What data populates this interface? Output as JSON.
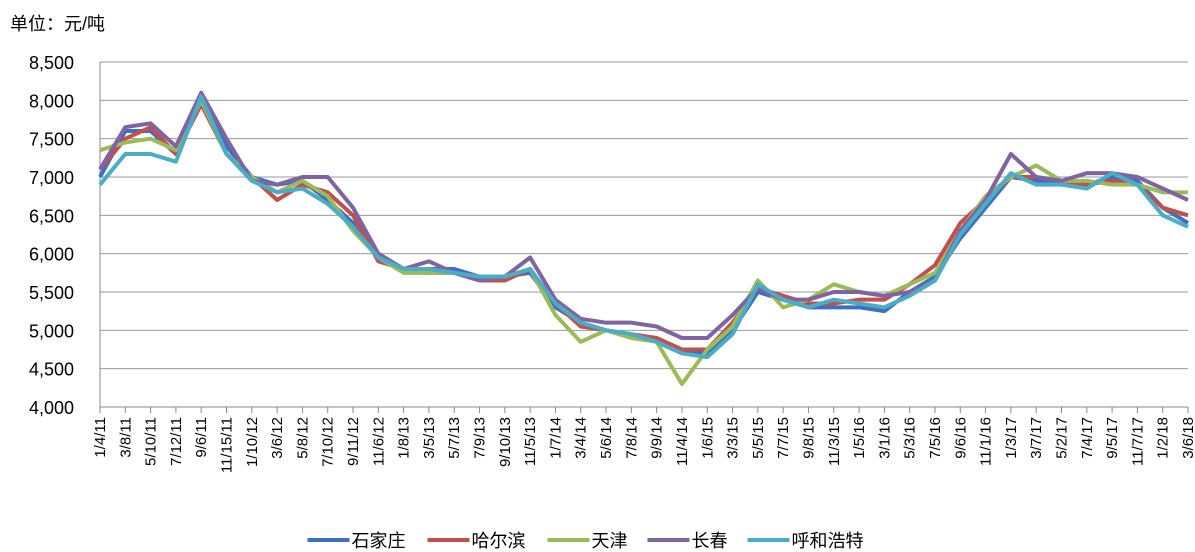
{
  "chart_data": {
    "type": "line",
    "unit_label": "单位：元/吨",
    "categories": [
      "1/4/11",
      "3/8/11",
      "5/10/11",
      "7/12/11",
      "9/6/11",
      "11/15/11",
      "1/10/12",
      "3/6/12",
      "5/8/12",
      "7/10/12",
      "9/11/12",
      "11/6/12",
      "1/8/13",
      "3/5/13",
      "5/7/13",
      "7/9/13",
      "9/10/13",
      "11/5/13",
      "1/7/14",
      "3/4/14",
      "5/6/14",
      "7/8/14",
      "9/9/14",
      "11/4/14",
      "1/6/15",
      "3/3/15",
      "5/5/15",
      "7/7/15",
      "9/8/15",
      "11/3/15",
      "1/5/16",
      "3/1/16",
      "5/3/16",
      "7/5/16",
      "9/6/16",
      "11/1/16",
      "1/3/17",
      "3/7/17",
      "5/2/17",
      "7/4/17",
      "9/5/17",
      "11/7/17",
      "1/2/18",
      "3/6/18"
    ],
    "series": [
      {
        "name": "石家庄",
        "color": "#3f6fbf",
        "values": [
          7000,
          7600,
          7600,
          7300,
          8050,
          7400,
          7000,
          6900,
          6950,
          6700,
          6400,
          6000,
          5800,
          5800,
          5800,
          5700,
          5700,
          5750,
          5300,
          5100,
          5000,
          4950,
          4850,
          4700,
          4700,
          5000,
          5500,
          5400,
          5300,
          5300,
          5300,
          5250,
          5500,
          5700,
          6200,
          6600,
          7000,
          6950,
          6950,
          6900,
          7000,
          6950,
          6600,
          6400
        ]
      },
      {
        "name": "哈尔滨",
        "color": "#c0504d",
        "values": [
          7100,
          7500,
          7650,
          7300,
          7950,
          7300,
          7000,
          6700,
          6900,
          6800,
          6500,
          5900,
          5800,
          5750,
          5750,
          5650,
          5650,
          5800,
          5350,
          5050,
          5000,
          4950,
          4900,
          4750,
          4750,
          5100,
          5550,
          5450,
          5350,
          5350,
          5400,
          5400,
          5600,
          5850,
          6400,
          6700,
          7000,
          7000,
          6950,
          6900,
          6950,
          6900,
          6600,
          6500
        ]
      },
      {
        "name": "天津",
        "color": "#9bbb59",
        "values": [
          7350,
          7450,
          7500,
          7350,
          8000,
          7300,
          7000,
          6800,
          6950,
          6750,
          6300,
          5950,
          5750,
          5750,
          5750,
          5700,
          5700,
          5800,
          5200,
          4850,
          5000,
          4900,
          4850,
          4300,
          4750,
          5050,
          5650,
          5300,
          5400,
          5600,
          5500,
          5450,
          5600,
          5750,
          6300,
          6750,
          7000,
          7150,
          6950,
          6950,
          6900,
          6900,
          6800,
          6800
        ]
      },
      {
        "name": "长春",
        "color": "#8064a2",
        "values": [
          7100,
          7650,
          7700,
          7400,
          8100,
          7500,
          6950,
          6900,
          7000,
          7000,
          6600,
          6000,
          5800,
          5900,
          5750,
          5650,
          5700,
          5950,
          5400,
          5150,
          5100,
          5100,
          5050,
          4900,
          4900,
          5200,
          5550,
          5400,
          5400,
          5500,
          5500,
          5450,
          5500,
          5650,
          6300,
          6700,
          7300,
          7000,
          6950,
          7050,
          7050,
          7000,
          6850,
          6700
        ]
      },
      {
        "name": "呼和浩特",
        "color": "#4bacc6",
        "values": [
          6900,
          7300,
          7300,
          7200,
          8050,
          7300,
          6950,
          6800,
          6850,
          6650,
          6350,
          5950,
          5800,
          5800,
          5750,
          5700,
          5700,
          5800,
          5350,
          5100,
          5000,
          4950,
          4850,
          4700,
          4650,
          4950,
          5600,
          5400,
          5300,
          5400,
          5350,
          5300,
          5450,
          5650,
          6250,
          6650,
          7050,
          6900,
          6900,
          6850,
          7050,
          6900,
          6500,
          6350
        ]
      }
    ],
    "ylim": [
      4000,
      8500
    ],
    "yticks": [
      {
        "value": 4000,
        "label": "4,000"
      },
      {
        "value": 4500,
        "label": "4,500"
      },
      {
        "value": 5000,
        "label": "5,000"
      },
      {
        "value": 5500,
        "label": "5,500"
      },
      {
        "value": 6000,
        "label": "6,000"
      },
      {
        "value": 6500,
        "label": "6,500"
      },
      {
        "value": 7000,
        "label": "7,000"
      },
      {
        "value": 7500,
        "label": "7,500"
      },
      {
        "value": 8000,
        "label": "8,000"
      },
      {
        "value": 8500,
        "label": "8,500"
      }
    ],
    "grid": true
  }
}
